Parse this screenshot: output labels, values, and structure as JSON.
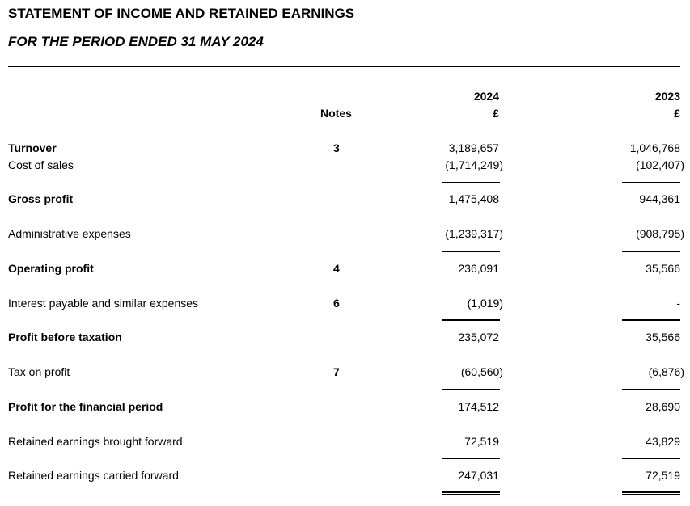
{
  "title": "STATEMENT OF INCOME AND RETAINED EARNINGS",
  "subtitle": "FOR THE PERIOD ENDED 31 MAY 2024",
  "header": {
    "notes": "Notes",
    "year_current": "2024",
    "year_prior": "2023",
    "currency_current": "£",
    "currency_prior": "£"
  },
  "rows": [
    {
      "label": "Turnover",
      "bold": true,
      "note": "3",
      "current": "3,189,657",
      "prior": "1,046,768"
    },
    {
      "label": "Cost of sales",
      "bold": false,
      "note": "",
      "current": "(1,714,249)",
      "prior": "(102,407)"
    },
    {
      "label": "Gross profit",
      "bold": true,
      "note": "",
      "current": "1,475,408",
      "prior": "944,361"
    },
    {
      "label": "Administrative expenses",
      "bold": false,
      "note": "",
      "current": "(1,239,317)",
      "prior": "(908,795)"
    },
    {
      "label": "Operating profit",
      "bold": true,
      "note": "4",
      "current": "236,091",
      "prior": "35,566"
    },
    {
      "label": "Interest payable and similar expenses",
      "bold": false,
      "note": "6",
      "current": "(1,019)",
      "prior": "-"
    },
    {
      "label": "Profit before taxation",
      "bold": true,
      "note": "",
      "current": "235,072",
      "prior": "35,566"
    },
    {
      "label": "Tax on profit",
      "bold": false,
      "note": "7",
      "current": "(60,560)",
      "prior": "(6,876)"
    },
    {
      "label": "Profit for the financial period",
      "bold": true,
      "note": "",
      "current": "174,512",
      "prior": "28,690"
    },
    {
      "label": "Retained earnings brought forward",
      "bold": false,
      "note": "",
      "current": "72,519",
      "prior": "43,829"
    },
    {
      "label": "Retained earnings carried forward",
      "bold": false,
      "note": "",
      "current": "247,031",
      "prior": "72,519"
    }
  ]
}
